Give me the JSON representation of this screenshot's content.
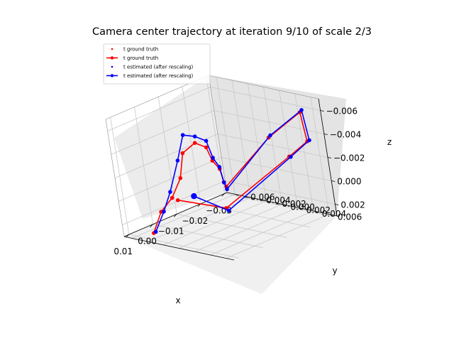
{
  "chart_data": {
    "type": "scatter",
    "title": "Camera center trajectory at iteration 9/10 of scale 2/3",
    "xlabel": "x",
    "ylabel": "y",
    "zlabel": "z",
    "x_ticks": [
      "0.01",
      "0.00",
      "−0.01",
      "−0.02",
      "−0.03"
    ],
    "y_ticks": [
      "0.006",
      "0.004",
      "0.002",
      "0.000",
      "−0.002",
      "−0.004",
      "−0.006"
    ],
    "z_ticks": [
      "−0.006",
      "−0.004",
      "−0.002",
      "0.000",
      "0.002"
    ],
    "xlim": [
      0.012,
      -0.031
    ],
    "ylim": [
      -0.007,
      0.007
    ],
    "zlim": [
      0.003,
      -0.007
    ],
    "grid": true,
    "legend": {
      "location": "upper-left",
      "entries": [
        {
          "label": "t ground truth",
          "color": "#ff0000",
          "style": "markers"
        },
        {
          "label": "t ground truth",
          "color": "#ff0000",
          "style": "line-markers"
        },
        {
          "label": "t estimated (after rescaling)",
          "color": "#0000ff",
          "style": "markers"
        },
        {
          "label": "t estimated (after rescaling)",
          "color": "#0000ff",
          "style": "line-markers"
        }
      ]
    },
    "series": [
      {
        "name": "t ground truth",
        "color": "#ff0000",
        "points": [
          [
            0.0085,
            -0.0042,
            0.0026
          ],
          [
            0.0055,
            -0.0038,
            0.001
          ],
          [
            0.0045,
            -0.0024,
            -0.0003
          ],
          [
            0.003,
            -0.0014,
            -0.002
          ],
          [
            0.0012,
            -0.0012,
            -0.004
          ],
          [
            -0.0042,
            -0.0012,
            -0.0044
          ],
          [
            -0.0066,
            -0.0006,
            -0.0039
          ],
          [
            -0.0076,
            -0.0004,
            -0.0027
          ],
          [
            -0.0085,
            0.0001,
            -0.002
          ],
          [
            -0.0078,
            0.0006,
            -0.001
          ],
          [
            -0.0082,
            0.0007,
            -0.0006
          ],
          [
            -0.015,
            0.005,
            -0.0048
          ],
          [
            -0.027,
            0.0056,
            -0.006
          ],
          [
            -0.0275,
            0.0058,
            -0.0035
          ],
          [
            -0.0225,
            0.0048,
            -0.0025
          ],
          [
            -0.006,
            0.001,
            0.001
          ],
          [
            0.003,
            -0.0022,
            0.0
          ]
        ]
      },
      {
        "name": "t estimated (after rescaling)",
        "color": "#0000ff",
        "points": [
          [
            0.0082,
            -0.004,
            0.0025
          ],
          [
            0.005,
            -0.0036,
            0.001
          ],
          [
            0.0046,
            -0.0025,
            -0.0008
          ],
          [
            0.003,
            -0.0014,
            -0.0035
          ],
          [
            0.0012,
            -0.0008,
            -0.0056
          ],
          [
            -0.004,
            -0.001,
            -0.005
          ],
          [
            -0.0064,
            -0.0004,
            -0.0045
          ],
          [
            -0.0074,
            -0.0002,
            -0.003
          ],
          [
            -0.0082,
            0.0002,
            -0.0022
          ],
          [
            -0.0076,
            0.0007,
            -0.001
          ],
          [
            -0.008,
            0.0008,
            -0.0004
          ],
          [
            -0.0152,
            0.0052,
            -0.005
          ],
          [
            -0.0272,
            0.0058,
            -0.0062
          ],
          [
            -0.0278,
            0.006,
            -0.0036
          ],
          [
            -0.0225,
            0.005,
            -0.0025
          ],
          [
            -0.0062,
            0.0012,
            0.0012
          ],
          [
            0.0018,
            -0.0004,
            -0.0005
          ]
        ]
      }
    ]
  }
}
